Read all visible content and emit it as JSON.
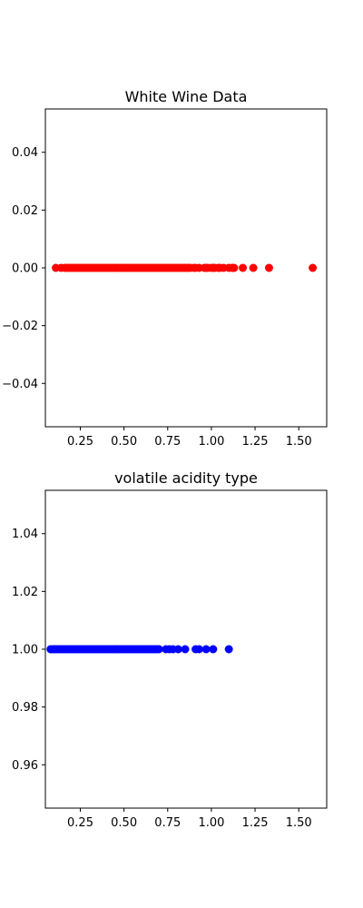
{
  "chart_data": [
    {
      "type": "scatter",
      "title": "White Wine Data",
      "xlabel": "",
      "ylabel": "",
      "xlim": [
        0.05,
        1.66
      ],
      "ylim": [
        -0.055,
        0.055
      ],
      "xticks": [
        0.25,
        0.5,
        0.75,
        1.0,
        1.25,
        1.5
      ],
      "xtick_labels": [
        "0.25",
        "0.50",
        "0.75",
        "1.00",
        "1.25",
        "1.50"
      ],
      "yticks": [
        -0.04,
        -0.02,
        0.0,
        0.02,
        0.04
      ],
      "ytick_labels": [
        "−0.04",
        "−0.02",
        "0.00",
        "0.02",
        "0.04"
      ],
      "grid": false,
      "series": [
        {
          "color": "#ff0000",
          "x": [
            0.11,
            0.14,
            0.16,
            0.17,
            0.18,
            0.19,
            0.2,
            0.21,
            0.22,
            0.23,
            0.24,
            0.25,
            0.26,
            0.27,
            0.28,
            0.29,
            0.3,
            0.31,
            0.32,
            0.33,
            0.34,
            0.35,
            0.36,
            0.37,
            0.38,
            0.39,
            0.4,
            0.41,
            0.42,
            0.43,
            0.44,
            0.45,
            0.46,
            0.47,
            0.48,
            0.49,
            0.5,
            0.51,
            0.52,
            0.53,
            0.54,
            0.55,
            0.56,
            0.57,
            0.58,
            0.59,
            0.6,
            0.61,
            0.62,
            0.63,
            0.64,
            0.65,
            0.66,
            0.67,
            0.68,
            0.69,
            0.7,
            0.71,
            0.72,
            0.73,
            0.74,
            0.75,
            0.76,
            0.77,
            0.78,
            0.79,
            0.8,
            0.81,
            0.82,
            0.83,
            0.84,
            0.85,
            0.86,
            0.87,
            0.88,
            0.9,
            0.91,
            0.93,
            0.96,
            0.97,
            0.98,
            1.0,
            1.01,
            1.02,
            1.04,
            1.05,
            1.07,
            1.1,
            1.12,
            1.13,
            1.18,
            1.24,
            1.33,
            1.58
          ],
          "y_constant": 0.0
        }
      ]
    },
    {
      "type": "scatter",
      "title": "volatile acidity type",
      "xlabel": "",
      "ylabel": "",
      "xlim": [
        0.05,
        1.66
      ],
      "ylim": [
        0.945,
        1.055
      ],
      "xticks": [
        0.25,
        0.5,
        0.75,
        1.0,
        1.25,
        1.5
      ],
      "xtick_labels": [
        "0.25",
        "0.50",
        "0.75",
        "1.00",
        "1.25",
        "1.50"
      ],
      "yticks": [
        0.96,
        0.98,
        1.0,
        1.02,
        1.04
      ],
      "ytick_labels": [
        "0.96",
        "0.98",
        "1.00",
        "1.02",
        "1.04"
      ],
      "grid": false,
      "series": [
        {
          "color": "#0000ff",
          "x": [
            0.08,
            0.09,
            0.1,
            0.11,
            0.12,
            0.13,
            0.14,
            0.15,
            0.16,
            0.17,
            0.18,
            0.19,
            0.2,
            0.21,
            0.22,
            0.23,
            0.24,
            0.25,
            0.26,
            0.27,
            0.28,
            0.29,
            0.3,
            0.31,
            0.32,
            0.33,
            0.34,
            0.35,
            0.36,
            0.37,
            0.38,
            0.39,
            0.4,
            0.41,
            0.42,
            0.43,
            0.44,
            0.45,
            0.46,
            0.47,
            0.48,
            0.49,
            0.5,
            0.51,
            0.52,
            0.53,
            0.54,
            0.55,
            0.56,
            0.57,
            0.58,
            0.59,
            0.6,
            0.61,
            0.62,
            0.63,
            0.64,
            0.65,
            0.66,
            0.67,
            0.68,
            0.69,
            0.7,
            0.74,
            0.76,
            0.78,
            0.81,
            0.85,
            0.91,
            0.93,
            0.97,
            1.01,
            1.1
          ],
          "y_constant": 1.0
        }
      ]
    }
  ]
}
